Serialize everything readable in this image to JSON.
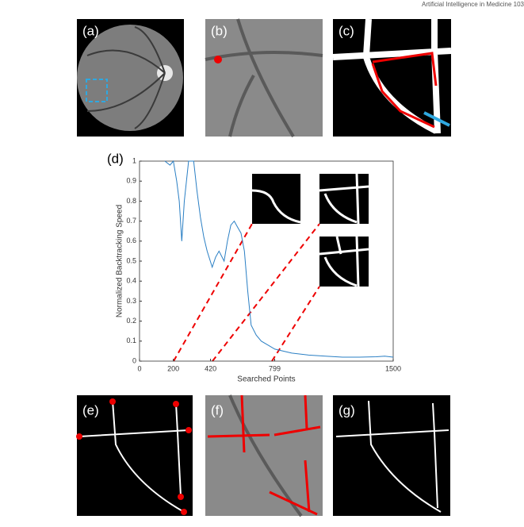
{
  "header": "Artificial Intelligence in Medicine 103",
  "panels": [
    "(a)",
    "(b)",
    "(c)",
    "(d)",
    "(e)",
    "(f)",
    "(g)"
  ],
  "chart_data": {
    "type": "line",
    "xlabel": "Searched Points",
    "ylabel": "Normalized Backtracking Speed",
    "x": [
      150,
      180,
      200,
      220,
      235,
      250,
      265,
      290,
      320,
      340,
      360,
      380,
      400,
      430,
      450,
      470,
      500,
      520,
      540,
      560,
      580,
      600,
      620,
      640,
      660,
      690,
      720,
      760,
      800,
      900,
      1000,
      1100,
      1200,
      1300,
      1400,
      1450,
      1500
    ],
    "values": [
      1,
      0.98,
      1,
      0.9,
      0.8,
      0.6,
      0.8,
      1,
      1,
      0.85,
      0.72,
      0.62,
      0.55,
      0.47,
      0.52,
      0.55,
      0.5,
      0.6,
      0.68,
      0.7,
      0.67,
      0.64,
      0.55,
      0.35,
      0.18,
      0.13,
      0.1,
      0.08,
      0.06,
      0.04,
      0.03,
      0.025,
      0.02,
      0.02,
      0.022,
      0.025,
      0.02
    ],
    "color": "#2a7fc4",
    "xlim": [
      0,
      1500
    ],
    "ylim": [
      0,
      1
    ],
    "xticks": [
      0,
      200,
      420,
      799,
      1500
    ],
    "yticks": [
      0,
      0.1,
      0.2,
      0.3,
      0.4,
      0.5,
      0.6,
      0.7,
      0.8,
      0.9,
      1
    ]
  }
}
